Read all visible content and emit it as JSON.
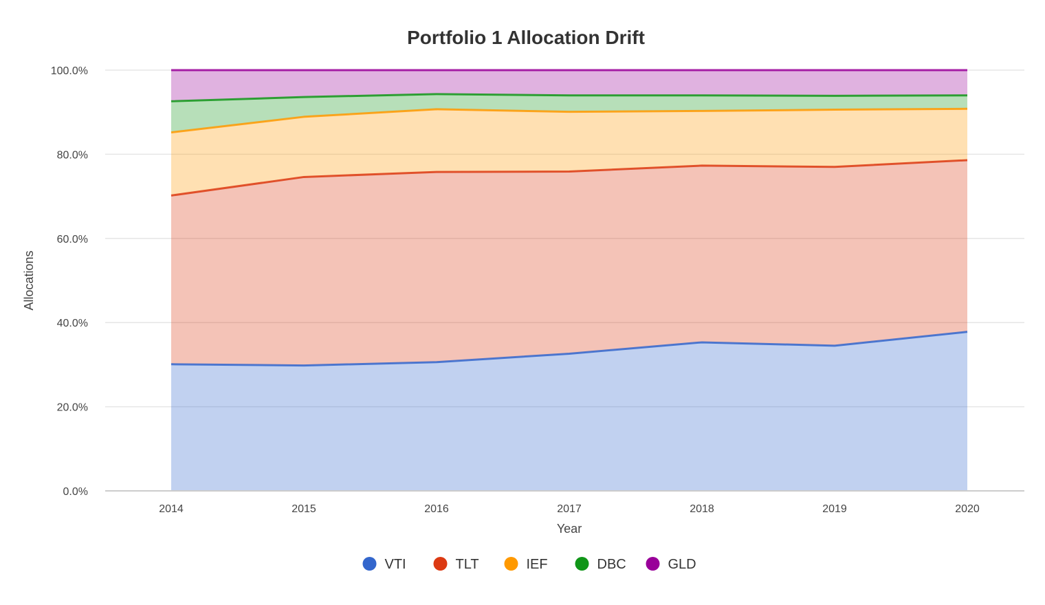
{
  "chart_data": {
    "type": "area",
    "stacked": true,
    "title": "Portfolio 1 Allocation Drift",
    "xlabel": "Year",
    "ylabel": "Allocations",
    "x": [
      "2014",
      "2015",
      "2016",
      "2017",
      "2018",
      "2019",
      "2020"
    ],
    "ylim": [
      0,
      100
    ],
    "yticks": [
      "0.0%",
      "20.0%",
      "40.0%",
      "60.0%",
      "80.0%",
      "100.0%"
    ],
    "ytick_values": [
      0,
      20,
      40,
      60,
      80,
      100
    ],
    "grid": true,
    "legend_position": "bottom",
    "series": [
      {
        "name": "VTI",
        "color": "#3366cc",
        "values": [
          30.1,
          29.8,
          30.6,
          32.6,
          35.3,
          34.5,
          37.8
        ]
      },
      {
        "name": "TLT",
        "color": "#dc3912",
        "values": [
          40.1,
          44.8,
          45.2,
          43.3,
          42.0,
          42.5,
          40.8
        ]
      },
      {
        "name": "IEF",
        "color": "#ff9900",
        "values": [
          15.0,
          14.3,
          14.9,
          14.2,
          13.0,
          13.6,
          12.2
        ]
      },
      {
        "name": "DBC",
        "color": "#109618",
        "values": [
          7.4,
          4.7,
          3.6,
          3.9,
          3.7,
          3.3,
          3.2
        ]
      },
      {
        "name": "GLD",
        "color": "#990099",
        "values": [
          7.4,
          6.4,
          5.7,
          6.0,
          6.0,
          6.1,
          6.0
        ]
      }
    ]
  }
}
